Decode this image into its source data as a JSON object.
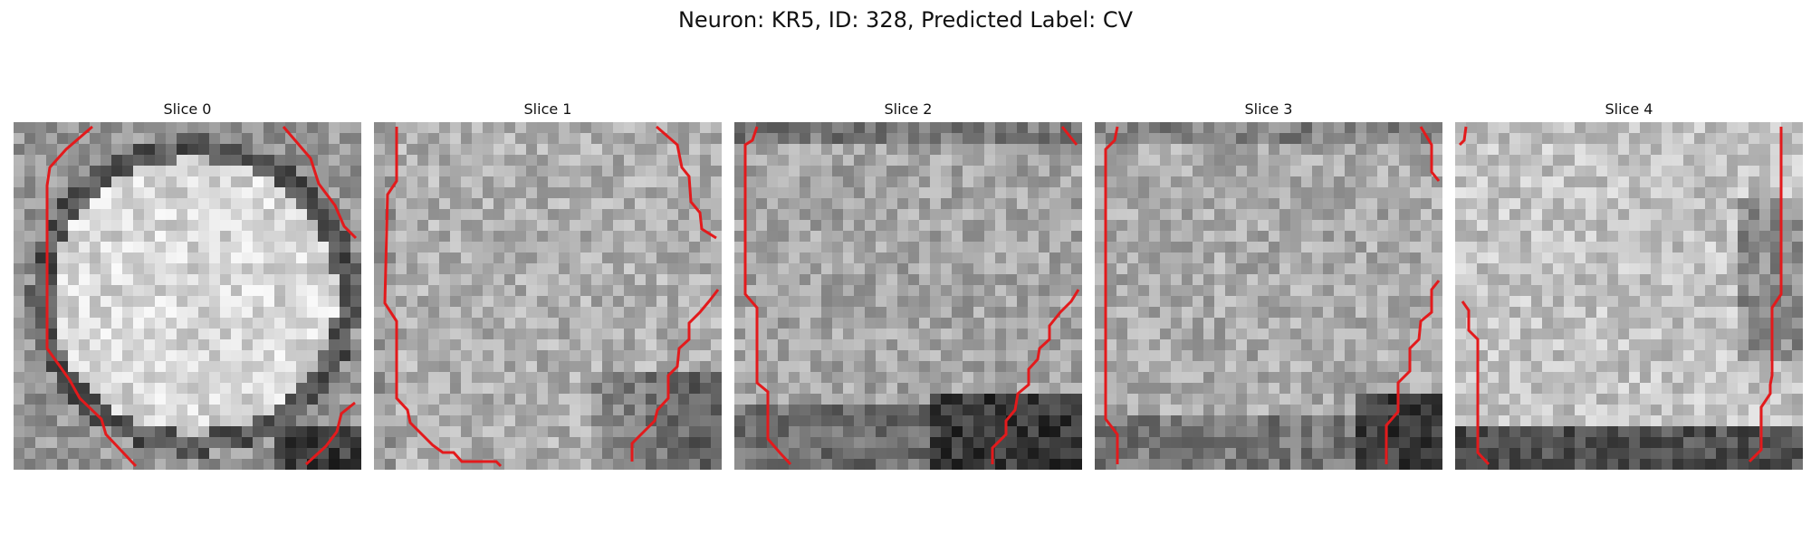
{
  "figure": {
    "title": "Neuron: KR5, ID: 328, Predicted Label: CV"
  },
  "panels": [
    {
      "title": "Slice 0",
      "image": {
        "description_pattern": "bright-center",
        "seed": 11
      },
      "contour_color": "#e31a1c"
    },
    {
      "title": "Slice 1",
      "image": {
        "description_pattern": "uniform-gray",
        "seed": 23
      },
      "contour_color": "#e31a1c"
    },
    {
      "title": "Slice 2",
      "image": {
        "description_pattern": "dark-bottom",
        "seed": 37
      },
      "contour_color": "#e31a1c"
    },
    {
      "title": "Slice 3",
      "image": {
        "description_pattern": "dark-bottom-right",
        "seed": 41
      },
      "contour_color": "#e31a1c"
    },
    {
      "title": "Slice 4",
      "image": {
        "description_pattern": "light-dark-bottom",
        "seed": 53
      },
      "contour_color": "#e31a1c"
    }
  ]
}
